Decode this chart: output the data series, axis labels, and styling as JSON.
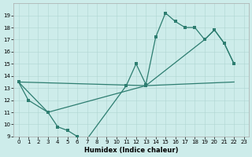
{
  "xlabel": "Humidex (Indice chaleur)",
  "bg_color": "#cdecea",
  "line_color": "#2d7d70",
  "grid_color": "#afd6d2",
  "xlim": [
    -0.5,
    23.5
  ],
  "ylim": [
    9,
    20
  ],
  "xticks": [
    0,
    1,
    2,
    3,
    4,
    5,
    6,
    7,
    8,
    9,
    10,
    11,
    12,
    13,
    14,
    15,
    16,
    17,
    18,
    19,
    20,
    21,
    22,
    23
  ],
  "yticks": [
    9,
    10,
    11,
    12,
    13,
    14,
    15,
    16,
    17,
    18,
    19
  ],
  "curve1_x": [
    0,
    1,
    3,
    4,
    5,
    6,
    7,
    11,
    12,
    13,
    14,
    15,
    16,
    17,
    18,
    19,
    20,
    21,
    22
  ],
  "curve1_y": [
    13.5,
    12.0,
    11.0,
    9.8,
    9.5,
    9.0,
    8.8,
    13.2,
    15.0,
    13.3,
    17.2,
    19.2,
    18.5,
    18.0,
    18.0,
    17.0,
    17.8,
    16.7,
    15.0
  ],
  "curve2_x": [
    0,
    13,
    22
  ],
  "curve2_y": [
    13.5,
    13.2,
    13.5
  ],
  "curve3_x": [
    0,
    3,
    13,
    19,
    20,
    21,
    22
  ],
  "curve3_y": [
    13.5,
    11.0,
    13.2,
    17.0,
    17.8,
    16.7,
    15.0
  ]
}
